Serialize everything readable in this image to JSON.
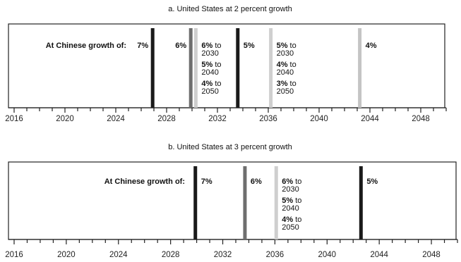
{
  "chart_data": [
    {
      "type": "timeline",
      "title": "a. United States at 2 percent growth",
      "row_label": "At Chinese growth of:",
      "xlim": [
        2016,
        2050
      ],
      "tick_labels": [
        "2016",
        "2020",
        "2024",
        "2028",
        "2032",
        "2036",
        "2040",
        "2044",
        "2048"
      ],
      "markers": [
        {
          "year": 2026.9,
          "tone": "#1a1a1a",
          "labels": [
            {
              "bold": "7%",
              "rest": ""
            }
          ],
          "label_side": "left"
        },
        {
          "year": 2029.9,
          "tone": "#6e6e6e",
          "labels": [
            {
              "bold": "6%",
              "rest": ""
            }
          ],
          "label_side": "left"
        },
        {
          "year": 2030.3,
          "tone": "#cfcfcf",
          "labels": [
            {
              "bold": "6%",
              "rest": " to",
              "sub": "2030"
            },
            {
              "bold": "5%",
              "rest": " to",
              "sub": "2040"
            },
            {
              "bold": "4%",
              "rest": " to",
              "sub": "2050"
            }
          ],
          "label_side": "right"
        },
        {
          "year": 2033.6,
          "tone": "#1a1a1a",
          "labels": [
            {
              "bold": "5%",
              "rest": ""
            }
          ],
          "label_side": "right"
        },
        {
          "year": 2036.2,
          "tone": "#cfcfcf",
          "labels": [
            {
              "bold": "5%",
              "rest": " to",
              "sub": "2030"
            },
            {
              "bold": "4%",
              "rest": " to",
              "sub": "2040"
            },
            {
              "bold": "3%",
              "rest": " to",
              "sub": "2050"
            }
          ],
          "label_side": "right"
        },
        {
          "year": 2043.2,
          "tone": "#c4c4c4",
          "labels": [
            {
              "bold": "4%",
              "rest": ""
            }
          ],
          "label_side": "right"
        }
      ]
    },
    {
      "type": "timeline",
      "title": "b. United States at 3 percent growth",
      "row_label": "At Chinese growth of:",
      "xlim": [
        2016,
        2050
      ],
      "tick_labels": [
        "2016",
        "2020",
        "2024",
        "2028",
        "2032",
        "2036",
        "2040",
        "2044",
        "2048"
      ],
      "markers": [
        {
          "year": 2029.9,
          "tone": "#1a1a1a",
          "labels": [
            {
              "bold": "7%",
              "rest": ""
            }
          ],
          "label_side": "right"
        },
        {
          "year": 2033.7,
          "tone": "#6e6e6e",
          "labels": [
            {
              "bold": "6%",
              "rest": ""
            }
          ],
          "label_side": "right"
        },
        {
          "year": 2036.1,
          "tone": "#cfcfcf",
          "labels": [
            {
              "bold": "6%",
              "rest": " to",
              "sub": "2030"
            },
            {
              "bold": "5%",
              "rest": " to",
              "sub": "2040"
            },
            {
              "bold": "4%",
              "rest": " to",
              "sub": "2050"
            }
          ],
          "label_side": "right"
        },
        {
          "year": 2042.6,
          "tone": "#1a1a1a",
          "labels": [
            {
              "bold": "5%",
              "rest": ""
            }
          ],
          "label_side": "right"
        }
      ]
    }
  ]
}
